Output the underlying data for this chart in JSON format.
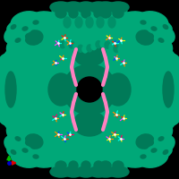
{
  "background_color": "#000000",
  "protein_color": "#00a878",
  "protein_color_dark": "#007a58",
  "protein_color_mid": "#009068",
  "ligand_colors_bright": [
    "#ff2200",
    "#ff8800",
    "#ffee00",
    "#0044ff",
    "#ff44ff",
    "#00ffee",
    "#ff0066"
  ],
  "pink_color": "#ff80c0",
  "axis_x_color": "#dd0000",
  "axis_y_color": "#00bb00",
  "axis_z_color": "#0000cc",
  "white_color": "#ffffff"
}
